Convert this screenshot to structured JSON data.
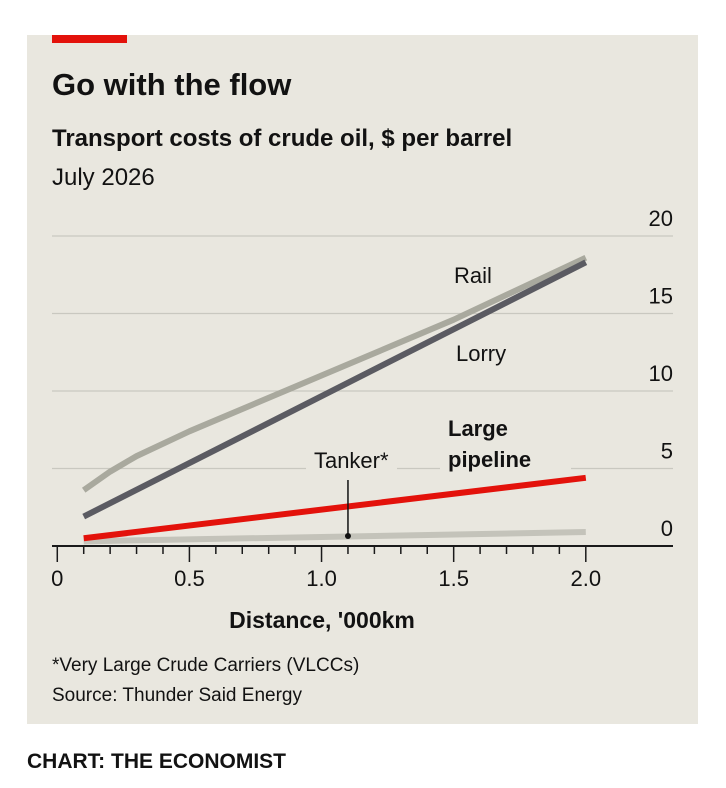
{
  "chart_data": {
    "type": "line",
    "title": "Go with the flow",
    "subtitle": "Transport costs of crude oil, $ per barrel",
    "date_note": "July 2026",
    "x_label": "Distance, '000km",
    "footnote": "*Very Large Crude Carriers (VLCCs)",
    "source": "Source: Thunder Said Energy",
    "credit": "CHART: THE ECONOMIST",
    "xlim": [
      -0.02,
      2.33
    ],
    "ylim": [
      0,
      20
    ],
    "xticks": [
      0,
      0.5,
      {
        "value": 1,
        "label": "1.0"
      },
      1.5,
      {
        "value": 2,
        "label": "2.0"
      }
    ],
    "xminorticks": [
      0.1,
      0.2,
      0.3,
      0.4,
      0.6,
      0.7,
      0.8,
      0.9,
      1.1,
      1.2,
      1.3,
      1.4,
      1.6,
      1.7,
      1.8,
      1.9
    ],
    "yticks": [
      0,
      5,
      10,
      15,
      20
    ],
    "grid": true,
    "series": [
      {
        "name": "Rail",
        "color": "#a9a99e",
        "x": [
          0.1,
          0.2,
          0.3,
          0.5,
          1.0,
          1.5,
          2.0
        ],
        "values": [
          3.6,
          4.8,
          5.8,
          7.4,
          11.0,
          14.6,
          18.6
        ]
      },
      {
        "name": "Lorry",
        "color": "#5b5b62",
        "x": [
          0.1,
          2.0
        ],
        "values": [
          1.9,
          18.3
        ]
      },
      {
        "name": "Large pipeline",
        "color": "#e3120b",
        "x": [
          0.1,
          2.0
        ],
        "values": [
          0.5,
          4.4
        ]
      },
      {
        "name": "Tanker*",
        "color": "#c4c3ba",
        "x": [
          0.1,
          2.0
        ],
        "values": [
          0.3,
          0.9
        ],
        "pointer_x": 1.1
      }
    ]
  }
}
